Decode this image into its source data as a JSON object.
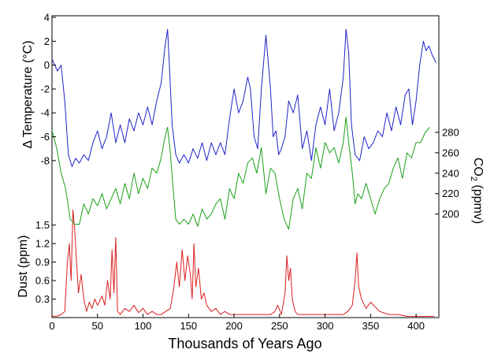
{
  "chart_data": {
    "type": "line",
    "title": "",
    "xlabel": "Thousands of Years Ago",
    "xlim": [
      0,
      425
    ],
    "x_ticks": [
      "0",
      "50",
      "100",
      "150",
      "200",
      "250",
      "300",
      "350",
      "400"
    ],
    "colors": {
      "temperature": "#1e23c8",
      "co2": "#19a019",
      "dust": "#dc1e1e",
      "axis": "#000000"
    },
    "temperature": {
      "ylabel": "Δ Temperature (°C)",
      "ylim": [
        -9,
        4
      ],
      "y_ticks": [
        "4",
        "2",
        "0",
        "-2",
        "-4",
        "-6",
        "-8"
      ],
      "x": [
        0,
        3,
        6,
        10,
        14,
        18,
        22,
        26,
        30,
        35,
        40,
        45,
        50,
        55,
        60,
        65,
        70,
        75,
        80,
        85,
        90,
        95,
        100,
        105,
        110,
        115,
        120,
        124,
        127,
        129,
        132,
        136,
        140,
        145,
        150,
        155,
        160,
        165,
        170,
        175,
        180,
        185,
        190,
        195,
        200,
        205,
        210,
        215,
        218,
        222,
        226,
        230,
        235,
        240,
        243,
        246,
        249,
        252,
        256,
        260,
        265,
        270,
        275,
        280,
        285,
        290,
        295,
        300,
        305,
        310,
        315,
        320,
        323,
        326,
        329,
        333,
        338,
        343,
        348,
        353,
        358,
        363,
        368,
        373,
        378,
        383,
        388,
        392,
        396,
        400,
        404,
        408,
        411,
        414,
        418,
        422
      ],
      "values": [
        0.5,
        0,
        -0.5,
        0,
        -3,
        -7.5,
        -8.5,
        -7.8,
        -8.2,
        -7.5,
        -8,
        -6.5,
        -5.5,
        -7,
        -6,
        -4,
        -6.5,
        -5,
        -6.5,
        -4.5,
        -5.5,
        -4,
        -5,
        -3.5,
        -5,
        -3,
        -1.5,
        1.5,
        3,
        0,
        -5,
        -7.5,
        -8.2,
        -7.5,
        -8.2,
        -7,
        -7.8,
        -6.5,
        -8,
        -6.5,
        -7.5,
        -6.5,
        -7.5,
        -4.5,
        -2,
        -4,
        -3,
        -1,
        -2,
        -6,
        -7,
        -2,
        2.5,
        -2,
        -6,
        -5.5,
        -7.5,
        -7,
        -6,
        -3,
        -4,
        -2.5,
        -7,
        -5.5,
        -8,
        -5,
        -3.5,
        -5,
        -2,
        -5.5,
        -4,
        -1,
        3,
        1,
        -5,
        -7.5,
        -8,
        -6,
        -7,
        -6.5,
        -5.5,
        -6,
        -4,
        -5.5,
        -3.5,
        -5,
        -2.5,
        -2,
        -5,
        -3,
        0,
        2,
        1.2,
        1.6,
        0.8,
        0.2
      ]
    },
    "co2": {
      "ylabel": "CO2 (ppmv)",
      "ylim": [
        175,
        290
      ],
      "y_ticks": [
        "280",
        "260",
        "240",
        "220",
        "200"
      ],
      "x": [
        0,
        5,
        10,
        15,
        20,
        25,
        30,
        35,
        40,
        45,
        50,
        55,
        60,
        65,
        70,
        75,
        80,
        85,
        90,
        95,
        100,
        105,
        110,
        115,
        120,
        124,
        127,
        130,
        133,
        136,
        140,
        145,
        150,
        155,
        160,
        165,
        170,
        175,
        180,
        185,
        190,
        195,
        200,
        205,
        210,
        215,
        220,
        225,
        230,
        235,
        240,
        245,
        250,
        255,
        260,
        265,
        270,
        275,
        280,
        285,
        290,
        295,
        300,
        305,
        310,
        315,
        320,
        323,
        326,
        330,
        333,
        336,
        340,
        345,
        350,
        355,
        360,
        365,
        370,
        375,
        380,
        385,
        390,
        395,
        400,
        405,
        410,
        415
      ],
      "values": [
        282,
        265,
        240,
        225,
        195,
        190,
        190,
        210,
        200,
        215,
        208,
        220,
        205,
        215,
        225,
        210,
        230,
        215,
        240,
        220,
        235,
        225,
        245,
        240,
        255,
        275,
        285,
        260,
        225,
        195,
        190,
        195,
        190,
        200,
        188,
        205,
        195,
        200,
        210,
        215,
        195,
        225,
        215,
        240,
        230,
        250,
        255,
        240,
        265,
        220,
        245,
        240,
        215,
        195,
        185,
        215,
        225,
        205,
        240,
        235,
        265,
        245,
        270,
        260,
        265,
        250,
        270,
        295,
        270,
        240,
        210,
        220,
        215,
        230,
        215,
        200,
        215,
        225,
        230,
        245,
        255,
        235,
        260,
        255,
        270,
        270,
        280,
        285
      ]
    },
    "dust": {
      "ylabel": "Dust (ppm)",
      "ylim": [
        0,
        1.75
      ],
      "y_ticks": [
        "1.5",
        "1.2",
        "0.9",
        "0.6",
        "0.3"
      ],
      "x": [
        0,
        5,
        10,
        14,
        17,
        19,
        21,
        23,
        25,
        27,
        29,
        32,
        35,
        38,
        41,
        44,
        47,
        50,
        55,
        58,
        61,
        64,
        66,
        68,
        70,
        72,
        75,
        80,
        85,
        90,
        95,
        100,
        105,
        110,
        115,
        120,
        125,
        130,
        134,
        137,
        140,
        143,
        146,
        149,
        152,
        154,
        156,
        158,
        161,
        164,
        167,
        170,
        175,
        180,
        185,
        190,
        195,
        200,
        210,
        220,
        230,
        240,
        245,
        248,
        252,
        256,
        258,
        260,
        262,
        264,
        267,
        270,
        280,
        290,
        300,
        310,
        320,
        325,
        330,
        333,
        335,
        337,
        340,
        345,
        350,
        360,
        370,
        380,
        390,
        400,
        410,
        420
      ],
      "values": [
        0.02,
        0.02,
        0.05,
        0.1,
        0.9,
        1.2,
        0.6,
        1.75,
        1.4,
        0.9,
        0.4,
        0.7,
        0.3,
        0.1,
        0.25,
        0.15,
        0.3,
        0.2,
        0.35,
        0.2,
        0.6,
        0.3,
        1.1,
        0.4,
        1.3,
        0.1,
        0.05,
        0.15,
        0.1,
        0.2,
        0.08,
        0.15,
        0.05,
        0.1,
        0.05,
        0.05,
        0.1,
        0.15,
        0.5,
        0.9,
        0.5,
        1.1,
        0.6,
        1.0,
        0.7,
        0.3,
        1.2,
        0.5,
        0.8,
        0.3,
        0.4,
        0.2,
        0.1,
        0.15,
        0.05,
        0.1,
        0.05,
        0.05,
        0.05,
        0.05,
        0.05,
        0.05,
        0.1,
        0.2,
        0.05,
        0.4,
        1.0,
        0.6,
        0.8,
        0.3,
        0.1,
        0.05,
        0.05,
        0.05,
        0.05,
        0.05,
        0.05,
        0.1,
        0.2,
        0.6,
        1.05,
        0.5,
        0.3,
        0.15,
        0.25,
        0.1,
        0.05,
        0.05,
        0.02,
        0.02,
        0.02,
        0.02
      ]
    }
  }
}
